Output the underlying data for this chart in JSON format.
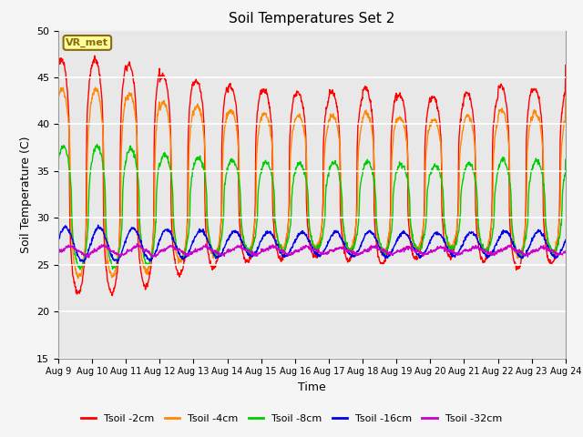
{
  "title": "Soil Temperatures Set 2",
  "xlabel": "Time",
  "ylabel": "Soil Temperature (C)",
  "ylim": [
    15,
    50
  ],
  "bg_color": "#e8e8e8",
  "fig_color": "#f5f5f5",
  "annotation_text": "VR_met",
  "annotation_bg": "#ffff99",
  "annotation_border": "#8B6914",
  "n_days": 15,
  "series": [
    {
      "label": "Tsoil -2cm",
      "color": "#ff0000",
      "amp": 12.5,
      "mean": 34.5,
      "phase_hr": 14,
      "skew": 3.0
    },
    {
      "label": "Tsoil -4cm",
      "color": "#ff8800",
      "amp": 10.0,
      "mean": 33.8,
      "phase_hr": 14.5,
      "skew": 2.5
    },
    {
      "label": "Tsoil -8cm",
      "color": "#00cc00",
      "amp": 6.5,
      "mean": 31.2,
      "phase_hr": 15.5,
      "skew": 2.0
    },
    {
      "label": "Tsoil -16cm",
      "color": "#0000ee",
      "amp": 1.8,
      "mean": 27.2,
      "phase_hr": 17,
      "skew": 1.0
    },
    {
      "label": "Tsoil -32cm",
      "color": "#cc00cc",
      "amp": 0.55,
      "mean": 26.5,
      "phase_hr": 20,
      "skew": 0.5
    }
  ],
  "x_tick_labels": [
    "Aug 9",
    "Aug 10",
    "Aug 11",
    "Aug 12",
    "Aug 13",
    "Aug 14",
    "Aug 15",
    "Aug 16",
    "Aug 17",
    "Aug 18",
    "Aug 19",
    "Aug 20",
    "Aug 21",
    "Aug 22",
    "Aug 23",
    "Aug 24"
  ],
  "y_ticks": [
    15,
    20,
    25,
    30,
    35,
    40,
    45,
    50
  ],
  "amplitude_variation": [
    1.0,
    1.0,
    0.95,
    0.85,
    0.8,
    0.75,
    0.72,
    0.7,
    0.72,
    0.75,
    0.7,
    0.68,
    0.72,
    0.78,
    0.75
  ]
}
